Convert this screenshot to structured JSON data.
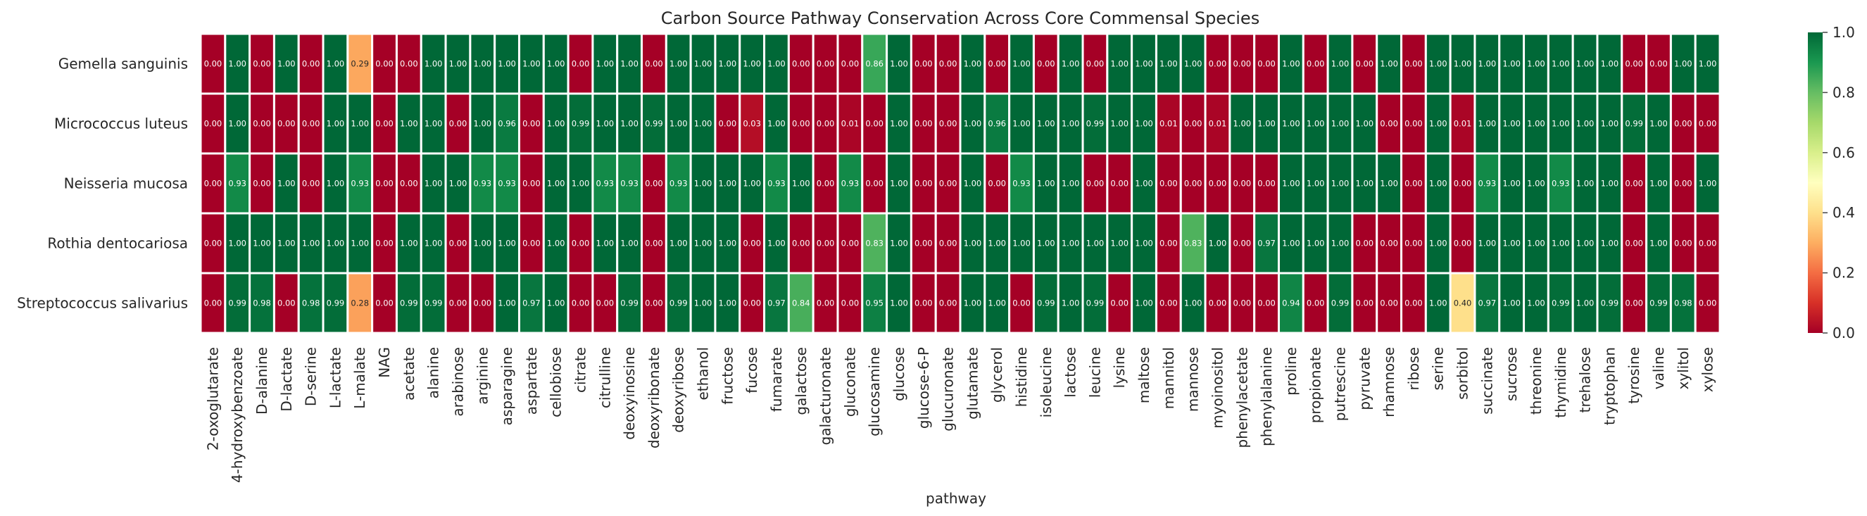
{
  "chart_data": {
    "type": "heatmap",
    "title": "Carbon Source Pathway Conservation Across Core Commensal Species",
    "xlabel": "pathway",
    "ylabel": "",
    "colormap": "RdYlGn",
    "vmin": 0.0,
    "vmax": 1.0,
    "colorbar_ticks": [
      "0.0",
      "0.2",
      "0.4",
      "0.6",
      "0.8",
      "1.0"
    ],
    "annotation_format": "0.00",
    "rows": [
      "Gemella sanguinis",
      "Micrococcus luteus",
      "Neisseria mucosa",
      "Rothia dentocariosa",
      "Streptococcus salivarius"
    ],
    "columns": [
      "2-oxoglutarate",
      "4-hydroxybenzoate",
      "D-alanine",
      "D-lactate",
      "D-serine",
      "L-lactate",
      "L-malate",
      "NAG",
      "acetate",
      "alanine",
      "arabinose",
      "arginine",
      "asparagine",
      "aspartate",
      "cellobiose",
      "citrate",
      "citrulline",
      "deoxyinosine",
      "deoxyribonate",
      "deoxyribose",
      "ethanol",
      "fructose",
      "fucose",
      "fumarate",
      "galactose",
      "galacturonate",
      "gluconate",
      "glucosamine",
      "glucose",
      "glucose-6-P",
      "glucuronate",
      "glutamate",
      "glycerol",
      "histidine",
      "isoleucine",
      "lactose",
      "leucine",
      "lysine",
      "maltose",
      "mannitol",
      "mannose",
      "myoinositol",
      "phenylacetate",
      "phenylalanine",
      "proline",
      "propionate",
      "putrescine",
      "pyruvate",
      "rhamnose",
      "ribose",
      "serine",
      "sorbitol",
      "succinate",
      "sucrose",
      "threonine",
      "thymidine",
      "trehalose",
      "tryptophan",
      "tyrosine",
      "valine",
      "xylitol",
      "xylose"
    ],
    "values": [
      [
        0,
        1,
        0,
        1,
        0,
        1,
        0.29,
        0,
        0,
        1,
        1,
        1,
        1,
        1,
        1,
        0,
        1,
        1,
        0,
        1,
        1,
        1,
        1,
        1,
        0,
        0,
        0,
        0.86,
        1,
        0,
        0,
        1,
        0,
        1,
        0,
        1,
        0,
        1,
        1,
        1,
        1,
        0,
        0,
        0,
        1,
        0,
        1,
        0,
        1,
        0,
        1,
        1,
        1,
        1,
        1,
        1,
        1,
        1,
        0,
        0,
        1,
        1
      ],
      [
        0,
        1,
        0,
        0,
        0,
        1,
        1,
        0,
        1,
        1,
        0,
        1,
        0.96,
        0,
        1,
        0.99,
        1,
        1,
        0.99,
        1,
        1,
        0,
        0.03,
        1,
        0,
        0,
        0.01,
        0,
        1,
        0,
        0,
        1,
        0.96,
        1,
        1,
        1,
        0.99,
        1,
        1,
        0.01,
        0,
        0.01,
        1,
        1,
        1,
        1,
        1,
        1,
        0,
        0,
        1,
        0.01,
        1,
        1,
        1,
        1,
        1,
        1,
        0.99,
        1,
        0,
        0
      ],
      [
        0,
        0.93,
        0,
        1,
        0,
        1,
        0.93,
        0,
        0,
        1,
        1,
        0.93,
        0.93,
        0,
        1,
        1,
        0.93,
        0.93,
        0,
        0.93,
        1,
        1,
        1,
        0.93,
        1,
        0,
        0.93,
        0,
        1,
        0,
        0,
        1,
        0,
        0.93,
        1,
        1,
        0,
        0,
        1,
        0,
        0,
        0,
        0,
        0,
        1,
        1,
        1,
        1,
        1,
        0,
        1,
        0,
        0.93,
        1,
        1,
        0.93,
        1,
        1,
        0,
        1,
        0,
        1
      ],
      [
        0,
        1,
        1,
        1,
        1,
        1,
        1,
        0,
        1,
        1,
        0,
        1,
        1,
        0,
        1,
        0,
        1,
        1,
        0,
        1,
        1,
        1,
        0,
        1,
        0,
        0,
        0,
        0.83,
        1,
        0,
        0,
        1,
        1,
        1,
        1,
        1,
        1,
        1,
        1,
        0,
        0.83,
        1,
        0,
        0.97,
        1,
        1,
        1,
        0,
        0,
        0,
        1,
        0,
        1,
        1,
        1,
        1,
        1,
        1,
        0,
        1,
        0,
        0
      ],
      [
        0,
        0.99,
        0.98,
        0,
        0.98,
        0.99,
        0.28,
        0,
        0.99,
        0.99,
        0,
        0,
        1,
        0.97,
        1,
        0,
        0,
        0.99,
        0,
        0.99,
        1,
        1,
        0,
        0.97,
        0.84,
        0,
        0,
        0.95,
        1,
        0,
        0,
        1,
        1,
        0,
        0.99,
        1,
        0.99,
        0,
        1,
        0,
        1,
        0,
        0,
        0,
        0.94,
        0,
        0.99,
        0,
        0,
        0,
        1,
        0.4,
        0.97,
        1,
        1,
        0.99,
        1,
        0.99,
        0,
        0.99,
        0.98,
        0
      ]
    ],
    "grid": false,
    "legend": "colorbar-right"
  }
}
